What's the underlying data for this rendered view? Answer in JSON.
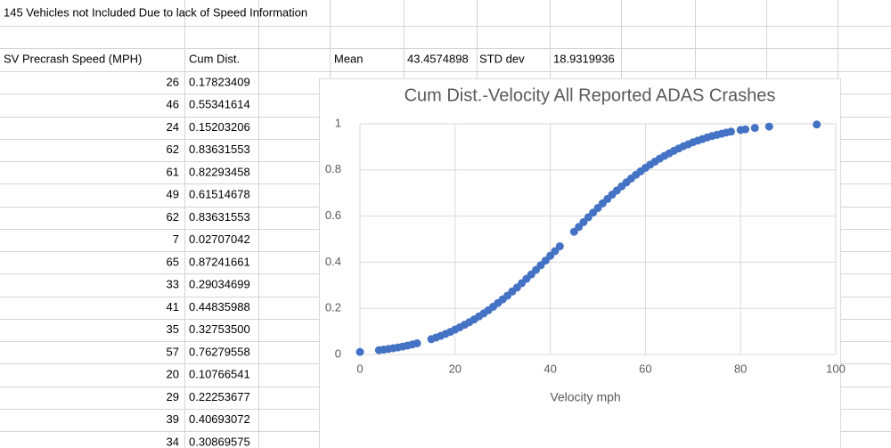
{
  "sheet": {
    "note": "145 Vehicles not Included Due to lack of Speed Information",
    "headers": [
      "SV Precrash Speed (MPH)",
      "Cum Dist."
    ],
    "stats": {
      "mean_label": "Mean",
      "mean": "43.4574898",
      "std_label": "STD dev",
      "std": "18.9319936"
    },
    "rows": [
      [
        "26",
        "0.17823409"
      ],
      [
        "46",
        "0.55341614"
      ],
      [
        "24",
        "0.15203206"
      ],
      [
        "62",
        "0.83631553"
      ],
      [
        "61",
        "0.82293458"
      ],
      [
        "49",
        "0.61514678"
      ],
      [
        "62",
        "0.83631553"
      ],
      [
        "7",
        "0.02707042"
      ],
      [
        "65",
        "0.87241661"
      ],
      [
        "33",
        "0.29034699"
      ],
      [
        "41",
        "0.44835988"
      ],
      [
        "35",
        "0.32753500"
      ],
      [
        "57",
        "0.76279558"
      ],
      [
        "20",
        "0.10766541"
      ],
      [
        "29",
        "0.22253677"
      ],
      [
        "39",
        "0.40693072"
      ],
      [
        "34",
        "0.30869575"
      ]
    ]
  },
  "chart_data": {
    "type": "scatter",
    "title": "Cum Dist.-Velocity All Reported ADAS Crashes",
    "x_label": "Velocity mph",
    "x": [
      0,
      4,
      5,
      6,
      7,
      8,
      9,
      10,
      11,
      12,
      15,
      16,
      17,
      18,
      19,
      20,
      21,
      22,
      23,
      24,
      25,
      26,
      27,
      28,
      29,
      30,
      31,
      32,
      33,
      34,
      35,
      36,
      37,
      38,
      39,
      40,
      41,
      42,
      45,
      46,
      47,
      48,
      49,
      50,
      51,
      52,
      53,
      54,
      55,
      56,
      57,
      58,
      59,
      60,
      61,
      62,
      63,
      64,
      65,
      66,
      67,
      68,
      69,
      70,
      71,
      72,
      73,
      74,
      75,
      76,
      77,
      78,
      80,
      81,
      83,
      86,
      96
    ],
    "values": [
      0.011,
      0.0186,
      0.0211,
      0.024,
      0.0271,
      0.0305,
      0.0344,
      0.0386,
      0.0433,
      0.0484,
      0.0664,
      0.0735,
      0.081,
      0.0893,
      0.098,
      0.108,
      0.118,
      0.129,
      0.14,
      0.152,
      0.165,
      0.178,
      0.192,
      0.207,
      0.223,
      0.239,
      0.255,
      0.273,
      0.29,
      0.309,
      0.328,
      0.347,
      0.367,
      0.387,
      0.407,
      0.428,
      0.448,
      0.469,
      0.532,
      0.553,
      0.574,
      0.595,
      0.615,
      0.635,
      0.655,
      0.674,
      0.693,
      0.711,
      0.729,
      0.746,
      0.763,
      0.779,
      0.794,
      0.809,
      0.823,
      0.836,
      0.849,
      0.861,
      0.872,
      0.883,
      0.893,
      0.903,
      0.911,
      0.92,
      0.927,
      0.934,
      0.941,
      0.947,
      0.952,
      0.957,
      0.962,
      0.966,
      0.973,
      0.976,
      0.982,
      0.988,
      0.997
    ],
    "color": "#4472c4",
    "xlim": [
      0,
      100
    ],
    "xticks": [
      0,
      20,
      40,
      60,
      80,
      100
    ],
    "ylim": [
      0,
      1
    ],
    "yticks": [
      0,
      0.2,
      0.4,
      0.6,
      0.8,
      1
    ],
    "grid": true
  }
}
